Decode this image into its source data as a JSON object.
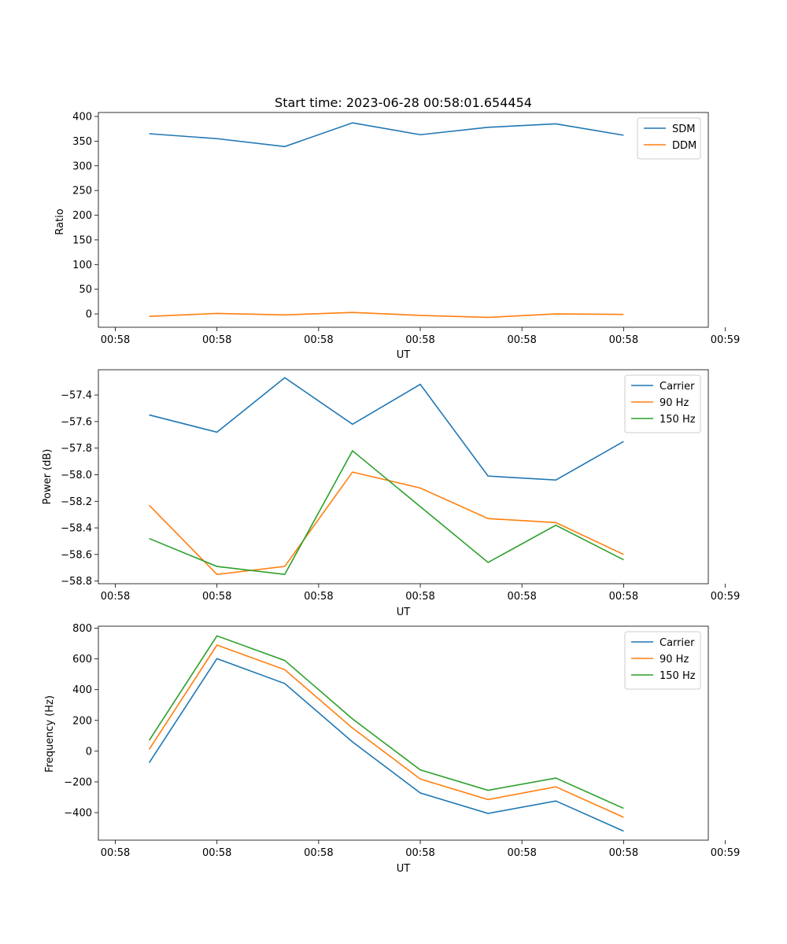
{
  "colors": {
    "blue": "#1f77b4",
    "orange": "#ff7f0e",
    "green": "#2ca02c"
  },
  "chart_data": [
    {
      "type": "line",
      "title": "Start time: 2023-06-28 00:58:01.654454",
      "xlabel": "UT",
      "ylabel": "Ratio",
      "x": [
        1,
        2,
        3,
        4,
        5,
        6,
        7,
        8
      ],
      "xlim": [
        0.25,
        9.25
      ],
      "xticks": [
        0.5,
        2,
        3.5,
        5,
        6.5,
        8,
        9.5
      ],
      "xtick_labels": [
        "00:58",
        "00:58",
        "00:58",
        "00:58",
        "00:58",
        "00:58",
        "00:59"
      ],
      "ylim": [
        -27,
        408
      ],
      "yticks": [
        0,
        50,
        100,
        150,
        200,
        250,
        300,
        350,
        400
      ],
      "ytick_labels": [
        "0",
        "50",
        "100",
        "150",
        "200",
        "250",
        "300",
        "350",
        "400"
      ],
      "legend": "top-right",
      "series": [
        {
          "name": "SDM",
          "color": "#1f77b4",
          "values": [
            365,
            355,
            339,
            387,
            363,
            378,
            385,
            362
          ]
        },
        {
          "name": "DDM",
          "color": "#ff7f0e",
          "values": [
            -5,
            1,
            -2,
            3,
            -3,
            -7,
            0,
            -1
          ]
        }
      ]
    },
    {
      "type": "line",
      "title": "",
      "xlabel": "UT",
      "ylabel": "Power (dB)",
      "x": [
        1,
        2,
        3,
        4,
        5,
        6,
        7,
        8
      ],
      "xlim": [
        0.25,
        9.25
      ],
      "xticks": [
        0.5,
        2,
        3.5,
        5,
        6.5,
        8,
        9.5
      ],
      "xtick_labels": [
        "00:58",
        "00:58",
        "00:58",
        "00:58",
        "00:58",
        "00:58",
        "00:59"
      ],
      "ylim": [
        -58.82,
        -57.21
      ],
      "yticks": [
        -58.8,
        -58.6,
        -58.4,
        -58.2,
        -58.0,
        -57.8,
        -57.6,
        -57.4
      ],
      "ytick_labels": [
        "−58.8",
        "−58.6",
        "−58.4",
        "−58.2",
        "−58.0",
        "−57.8",
        "−57.6",
        "−57.4"
      ],
      "legend": "top-right",
      "series": [
        {
          "name": "Carrier",
          "color": "#1f77b4",
          "values": [
            -57.55,
            -57.68,
            -57.27,
            -57.62,
            -57.32,
            -58.01,
            -58.04,
            -57.75
          ]
        },
        {
          "name": "90 Hz",
          "color": "#ff7f0e",
          "values": [
            -58.23,
            -58.75,
            -58.69,
            -57.98,
            -58.1,
            -58.33,
            -58.36,
            -58.6
          ]
        },
        {
          "name": "150 Hz",
          "color": "#2ca02c",
          "values": [
            -58.48,
            -58.69,
            -58.75,
            -57.82,
            -58.24,
            -58.66,
            -58.38,
            -58.64
          ]
        }
      ]
    },
    {
      "type": "line",
      "title": "",
      "xlabel": "UT",
      "ylabel": "Frequency (Hz)",
      "x": [
        1,
        2,
        3,
        4,
        5,
        6,
        7,
        8
      ],
      "xlim": [
        0.25,
        9.25
      ],
      "xticks": [
        0.5,
        2,
        3.5,
        5,
        6.5,
        8,
        9.5
      ],
      "xtick_labels": [
        "00:58",
        "00:58",
        "00:58",
        "00:58",
        "00:58",
        "00:58",
        "00:59"
      ],
      "ylim": [
        -579,
        813
      ],
      "yticks": [
        -400,
        -200,
        0,
        200,
        400,
        600,
        800
      ],
      "ytick_labels": [
        "−400",
        "−200",
        "0",
        "200",
        "400",
        "600",
        "800"
      ],
      "legend": "top-right",
      "series": [
        {
          "name": "Carrier",
          "color": "#1f77b4",
          "values": [
            -75,
            602,
            440,
            60,
            -272,
            -405,
            -324,
            -520
          ]
        },
        {
          "name": "90 Hz",
          "color": "#ff7f0e",
          "values": [
            12,
            690,
            530,
            150,
            -181,
            -315,
            -232,
            -430
          ]
        },
        {
          "name": "150 Hz",
          "color": "#2ca02c",
          "values": [
            70,
            750,
            590,
            210,
            -122,
            -255,
            -175,
            -372
          ]
        }
      ]
    }
  ]
}
